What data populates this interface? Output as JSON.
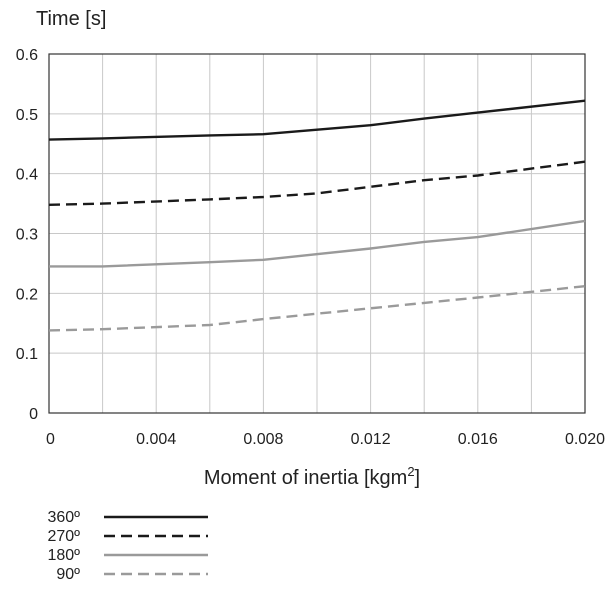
{
  "chart_data": {
    "type": "line",
    "ylabel": "Time [s]",
    "xlabel": "Moment of inertia [kgm",
    "xlabel_sup": "2",
    "xlabel_end": "]",
    "xlim": [
      0,
      0.02
    ],
    "ylim": [
      0,
      0.6
    ],
    "x_ticks": [
      "0",
      "0.004",
      "0.008",
      "0.012",
      "0.016",
      "0.020"
    ],
    "x_tick_values": [
      0,
      0.004,
      0.008,
      0.012,
      0.016,
      0.02
    ],
    "y_ticks": [
      "0",
      "0.1",
      "0.2",
      "0.3",
      "0.4",
      "0.5",
      "0.6"
    ],
    "y_tick_values": [
      0,
      0.1,
      0.2,
      0.3,
      0.4,
      0.5,
      0.6
    ],
    "x_grid_step": 0.002,
    "grid": true,
    "legend_position": "bottom-left",
    "series": [
      {
        "name": "360º",
        "color": "#1a1a1a",
        "dash": "solid",
        "x": [
          0,
          0.002,
          0.006,
          0.008,
          0.012,
          0.014,
          0.016,
          0.02
        ],
        "y": [
          0.457,
          0.459,
          0.464,
          0.466,
          0.481,
          0.492,
          0.502,
          0.522
        ]
      },
      {
        "name": "270º",
        "color": "#1a1a1a",
        "dash": "dashed",
        "x": [
          0,
          0.002,
          0.006,
          0.008,
          0.01,
          0.012,
          0.014,
          0.016,
          0.02
        ],
        "y": [
          0.348,
          0.35,
          0.357,
          0.361,
          0.367,
          0.378,
          0.389,
          0.397,
          0.42
        ]
      },
      {
        "name": "180º",
        "color": "#9a9a9a",
        "dash": "solid",
        "x": [
          0,
          0.002,
          0.006,
          0.008,
          0.012,
          0.014,
          0.016,
          0.02
        ],
        "y": [
          0.245,
          0.245,
          0.252,
          0.256,
          0.275,
          0.286,
          0.294,
          0.321
        ]
      },
      {
        "name": "90º",
        "color": "#9a9a9a",
        "dash": "dashed",
        "x": [
          0,
          0.002,
          0.006,
          0.008,
          0.012,
          0.016,
          0.02
        ],
        "y": [
          0.138,
          0.14,
          0.147,
          0.157,
          0.175,
          0.193,
          0.212
        ]
      }
    ]
  }
}
